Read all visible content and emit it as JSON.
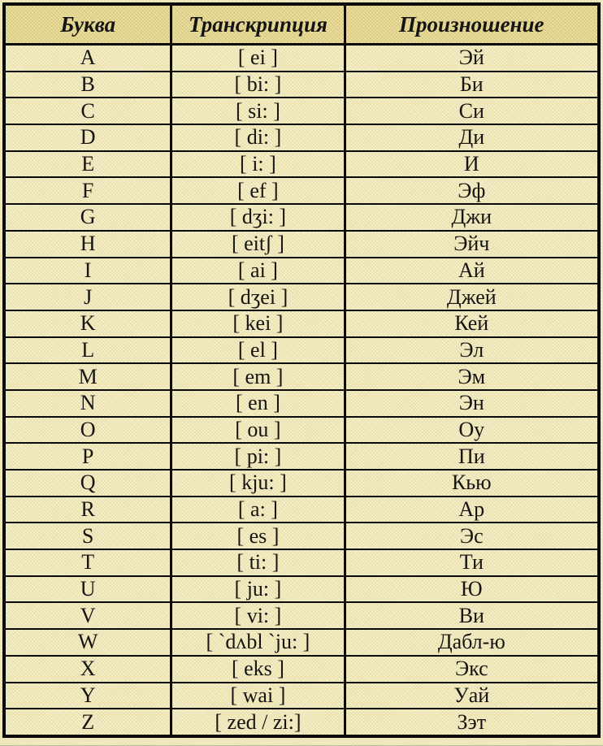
{
  "page": {
    "background_color": "#f5efc8",
    "header_background_color": "#ebdf9f",
    "border_color": "#0a0a0a",
    "text_color": "#161412"
  },
  "table": {
    "headers": [
      "Буква",
      "Транскрипция",
      "Произношение"
    ],
    "rows": [
      {
        "letter": "A",
        "transcription": "[ ei ]",
        "pronunciation": "Эй"
      },
      {
        "letter": "B",
        "transcription": "[ bi: ]",
        "pronunciation": "Би"
      },
      {
        "letter": "C",
        "transcription": "[ si: ]",
        "pronunciation": "Си"
      },
      {
        "letter": "D",
        "transcription": "[ di: ]",
        "pronunciation": "Ди"
      },
      {
        "letter": "E",
        "transcription": "[ i: ]",
        "pronunciation": "И"
      },
      {
        "letter": "F",
        "transcription": "[ ef ]",
        "pronunciation": "Эф"
      },
      {
        "letter": "G",
        "transcription": "[ dʒi: ]",
        "pronunciation": "Джи"
      },
      {
        "letter": "H",
        "transcription": "[ eitʃ ]",
        "pronunciation": "Эйч"
      },
      {
        "letter": "I",
        "transcription": "[ ai ]",
        "pronunciation": "Ай"
      },
      {
        "letter": "J",
        "transcription": "[ dʒei ]",
        "pronunciation": "Джей"
      },
      {
        "letter": "K",
        "transcription": "[ kei ]",
        "pronunciation": "Кей"
      },
      {
        "letter": "L",
        "transcription": "[ el ]",
        "pronunciation": "Эл"
      },
      {
        "letter": "M",
        "transcription": "[ em ]",
        "pronunciation": "Эм"
      },
      {
        "letter": "N",
        "transcription": "[ en ]",
        "pronunciation": "Эн"
      },
      {
        "letter": "O",
        "transcription": "[ ou ]",
        "pronunciation": "Оу"
      },
      {
        "letter": "P",
        "transcription": "[ pi: ]",
        "pronunciation": "Пи"
      },
      {
        "letter": "Q",
        "transcription": "[ kju: ]",
        "pronunciation": "Кью"
      },
      {
        "letter": "R",
        "transcription": "[ a: ]",
        "pronunciation": "Ар"
      },
      {
        "letter": "S",
        "transcription": "[ es ]",
        "pronunciation": "Эс"
      },
      {
        "letter": "T",
        "transcription": "[ ti: ]",
        "pronunciation": "Ти"
      },
      {
        "letter": "U",
        "transcription": "[ ju: ]",
        "pronunciation": "Ю"
      },
      {
        "letter": "V",
        "transcription": "[ vi: ]",
        "pronunciation": "Ви"
      },
      {
        "letter": "W",
        "transcription": "[ `dʌbl `ju: ]",
        "pronunciation": "Дабл-ю"
      },
      {
        "letter": "X",
        "transcription": "[ eks ]",
        "pronunciation": "Экс"
      },
      {
        "letter": "Y",
        "transcription": "[ wai ]",
        "pronunciation": "Уай"
      },
      {
        "letter": "Z",
        "transcription": "[ zed / zi:]",
        "pronunciation": "Зэт"
      }
    ]
  }
}
